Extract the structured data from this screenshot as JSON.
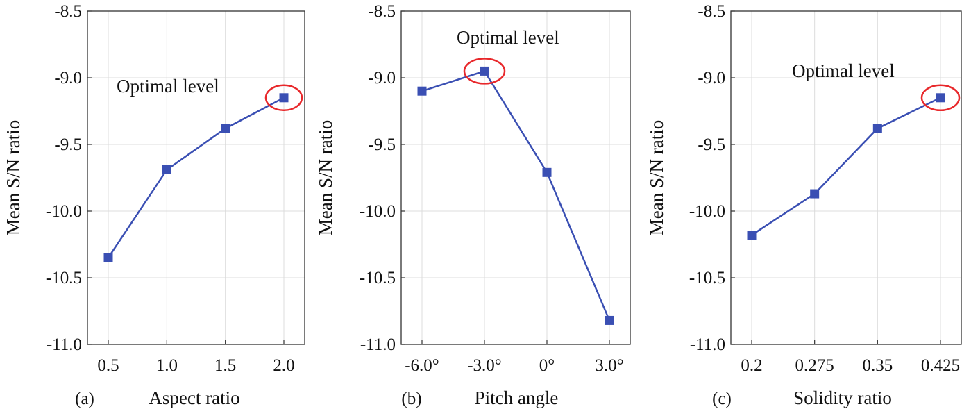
{
  "colors": {
    "line": "#3a4fb3",
    "marker": "#3a4fb3",
    "highlight": "#e8282b",
    "grid": "#dcdcdc",
    "frame": "#333333"
  },
  "chart_data": [
    {
      "type": "line",
      "panel_label": "(a)",
      "xlabel": "Aspect ratio",
      "ylabel": "Mean S/N ratio",
      "categories": [
        "0.5",
        "1.0",
        "1.5",
        "2.0"
      ],
      "values": [
        -10.35,
        -9.69,
        -9.38,
        -9.15
      ],
      "ylim": [
        -11.0,
        -8.5
      ],
      "yticks": [
        "-8.5",
        "-9.0",
        "-9.5",
        "-10.0",
        "-10.5",
        "-11.0"
      ],
      "grid": true,
      "annotation": {
        "text": "Optimal level",
        "category_index": 3
      }
    },
    {
      "type": "line",
      "panel_label": "(b)",
      "xlabel": "Pitch angle",
      "ylabel": "Mean S/N ratio",
      "categories": [
        "-6.0°",
        "-3.0°",
        "0°",
        "3.0°"
      ],
      "values": [
        -9.1,
        -8.95,
        -9.71,
        -10.82
      ],
      "ylim": [
        -11.0,
        -8.5
      ],
      "yticks": [
        "-8.5",
        "-9.0",
        "-9.5",
        "-10.0",
        "-10.5",
        "-11.0"
      ],
      "grid": true,
      "annotation": {
        "text": "Optimal level",
        "category_index": 1
      }
    },
    {
      "type": "line",
      "panel_label": "(c)",
      "xlabel": "Solidity ratio",
      "ylabel": "Mean S/N ratio",
      "categories": [
        "0.2",
        "0.275",
        "0.35",
        "0.425"
      ],
      "values": [
        -10.18,
        -9.87,
        -9.38,
        -9.15
      ],
      "ylim": [
        -11.0,
        -8.5
      ],
      "yticks": [
        "-8.5",
        "-9.0",
        "-9.5",
        "-10.0",
        "-10.5",
        "-11.0"
      ],
      "grid": true,
      "annotation": {
        "text": "Optimal level",
        "category_index": 3
      }
    }
  ]
}
